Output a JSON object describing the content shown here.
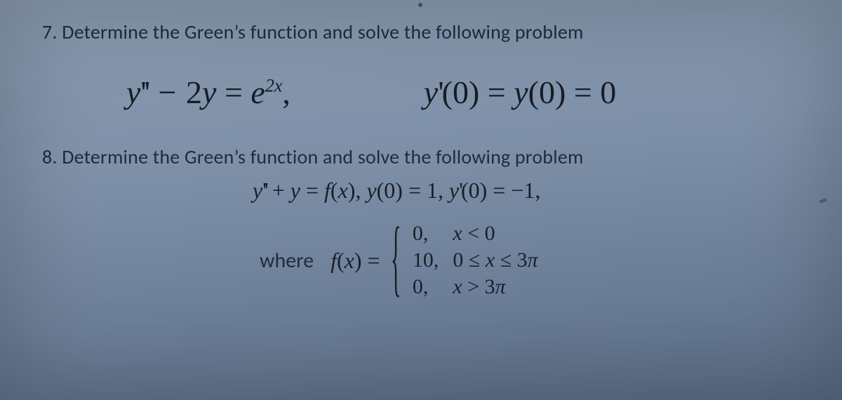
{
  "colors": {
    "background_top": "#8a9bb0",
    "background_mid": "#7e90a8",
    "background_low": "#6d7f98",
    "background_bottom": "#5a6c85",
    "text_body": "#232b3a",
    "text_math": "#1a1e28"
  },
  "typography": {
    "body_font": "Calibri / sans-serif",
    "body_size_pt": 21,
    "math_font": "Times New Roman italic",
    "math_large_pt": 34,
    "math_medium_pt": 24
  },
  "problems": [
    {
      "number": "7.",
      "text": "Determine the Green’s function  and solve the following problem",
      "equations": {
        "ode": "y'' - 2y = e^{2x},",
        "conditions": "y'(0) = y(0) = 0"
      }
    },
    {
      "number": "8.",
      "text": "Determine the Green’s function and  solve the following problem",
      "equation": "y'' + y = f(x), y(0) = 1, y'(0) = -1,",
      "piecewise": {
        "lead": "where",
        "func": "f(x) =",
        "cases": [
          {
            "value": "0,",
            "cond": "x < 0"
          },
          {
            "value": "10,",
            "cond": "0 ≤ x ≤ 3π"
          },
          {
            "value": "0,",
            "cond": "x > 3π"
          }
        ]
      }
    }
  ]
}
